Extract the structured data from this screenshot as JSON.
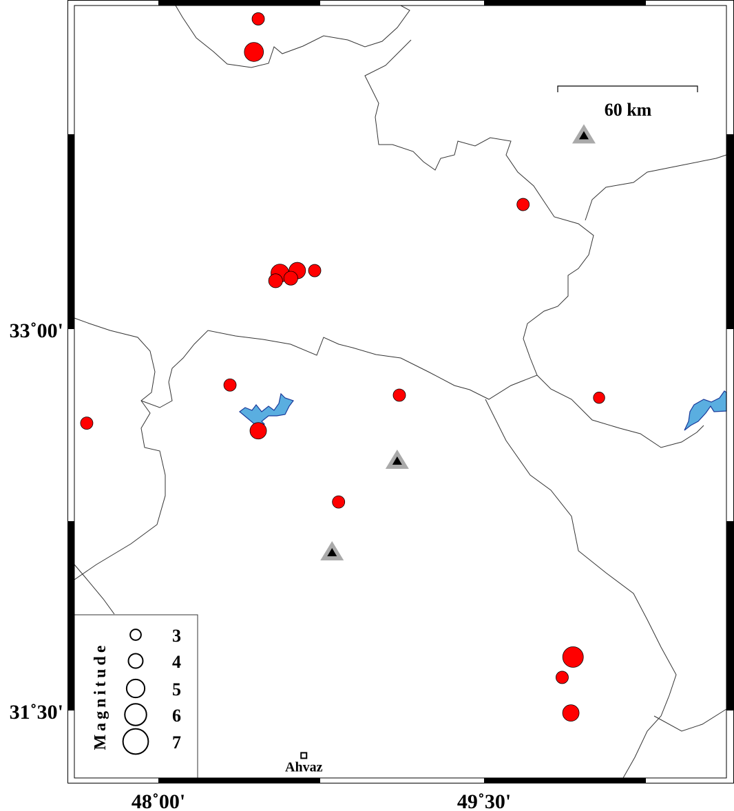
{
  "map": {
    "type": "seismicity map",
    "lon_range": [
      47.59,
      50.58
    ],
    "lat_range": [
      31.27,
      34.31
    ],
    "colors": {
      "event": "#ff0000",
      "water": "#5aaee0",
      "water_edge": "#1a3a9a",
      "station": "#aaaaaa",
      "border": "#333333"
    }
  },
  "axes": {
    "x_ticks": [
      {
        "lon": 48.0,
        "label": "48˚00'"
      },
      {
        "lon": 49.5,
        "label": "49˚30'"
      }
    ],
    "y_ticks": [
      {
        "lat": 33.0,
        "label": "33˚00'"
      },
      {
        "lat": 31.5,
        "label": "31˚30'"
      }
    ]
  },
  "scale_bar": {
    "label": "60 km",
    "km": 60
  },
  "events": [
    {
      "lon": 48.46,
      "lat": 34.22,
      "mag": 2.4
    },
    {
      "lon": 48.44,
      "lat": 34.09,
      "mag": 3.7
    },
    {
      "lon": 49.68,
      "lat": 33.49,
      "mag": 2.4
    },
    {
      "lon": 48.56,
      "lat": 33.22,
      "mag": 3.5
    },
    {
      "lon": 48.64,
      "lat": 33.23,
      "mag": 3.2
    },
    {
      "lon": 48.72,
      "lat": 33.23,
      "mag": 2.4
    },
    {
      "lon": 48.61,
      "lat": 33.2,
      "mag": 2.7
    },
    {
      "lon": 48.54,
      "lat": 33.19,
      "mag": 2.7
    },
    {
      "lon": 48.33,
      "lat": 32.78,
      "mag": 2.4
    },
    {
      "lon": 49.11,
      "lat": 32.74,
      "mag": 2.4
    },
    {
      "lon": 50.03,
      "lat": 32.73,
      "mag": 2.2
    },
    {
      "lon": 47.67,
      "lat": 32.63,
      "mag": 2.4
    },
    {
      "lon": 48.46,
      "lat": 32.6,
      "mag": 3.2
    },
    {
      "lon": 48.83,
      "lat": 32.32,
      "mag": 2.4
    },
    {
      "lon": 49.91,
      "lat": 31.71,
      "mag": 4.0
    },
    {
      "lon": 49.86,
      "lat": 31.63,
      "mag": 2.4
    },
    {
      "lon": 49.9,
      "lat": 31.49,
      "mag": 3.2
    }
  ],
  "stations": [
    {
      "lon": 49.96,
      "lat": 33.76
    },
    {
      "lon": 49.1,
      "lat": 32.48
    },
    {
      "lon": 48.8,
      "lat": 32.12
    }
  ],
  "cities": [
    {
      "name": "Ahvaz",
      "lon": 48.67,
      "lat": 31.32
    }
  ],
  "legend": {
    "title": "Magnitude",
    "items": [
      {
        "mag": 3,
        "label": "3"
      },
      {
        "mag": 4,
        "label": "4"
      },
      {
        "mag": 5,
        "label": "5"
      },
      {
        "mag": 6,
        "label": "6"
      },
      {
        "mag": 7,
        "label": "7"
      }
    ]
  }
}
